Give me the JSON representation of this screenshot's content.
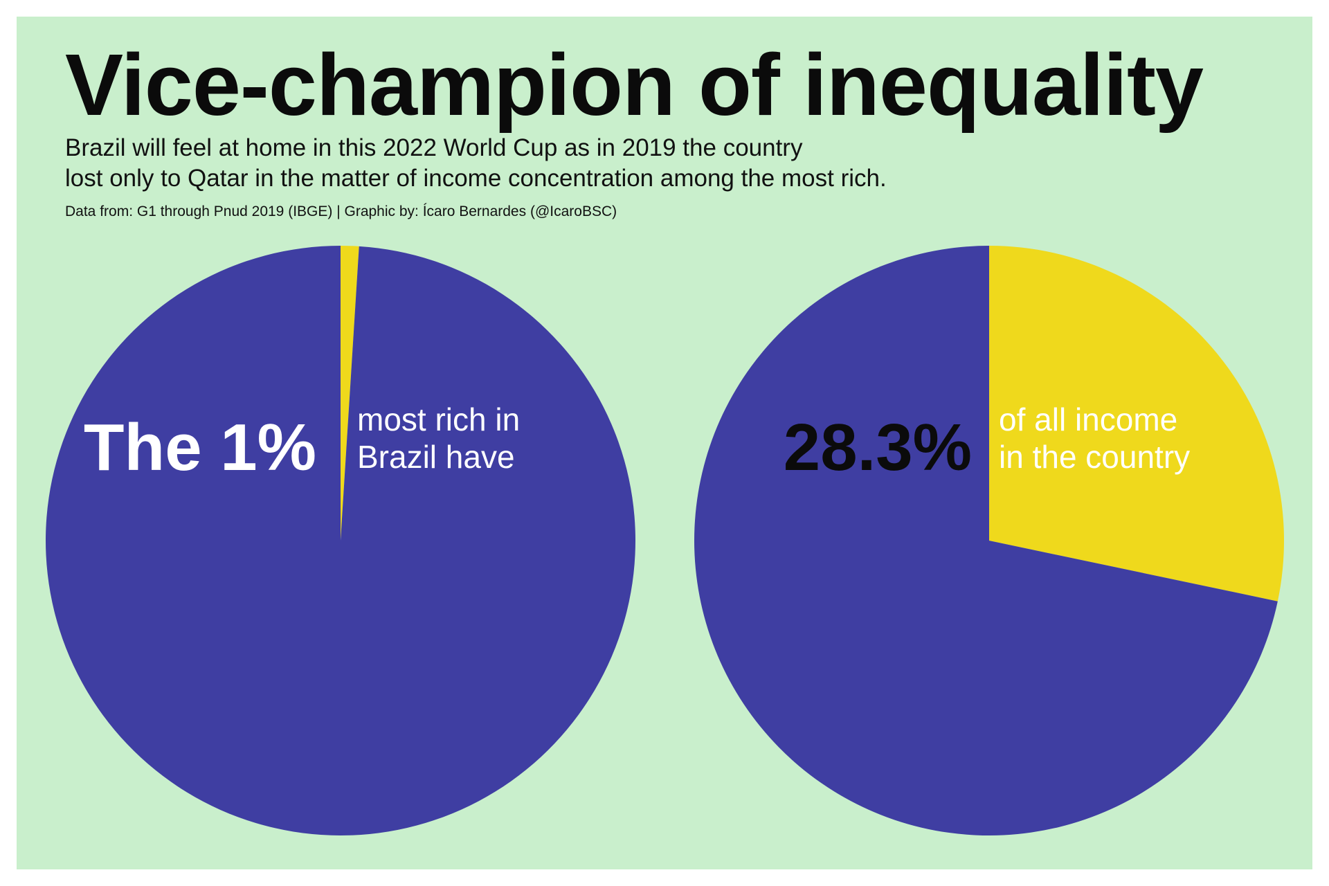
{
  "title": "Vice-champion of inequality",
  "subtitle": {
    "line1": "Brazil will feel at home in this 2022 World Cup as in 2019 the country",
    "line2": "lost only to Qatar in the matter of income concentration among the most rich."
  },
  "source": "Data from: G1 through Pnud 2019 (IBGE) | Graphic by: Ícaro Bernardes (@IcaroBSC)",
  "colors": {
    "background": "#c9efcc",
    "slice_main": "#3f3ea2",
    "slice_highlight": "#efd91c"
  },
  "chart_data": [
    {
      "type": "pie",
      "slices": [
        {
          "value": 1,
          "color": "#efd91c"
        },
        {
          "value": 99,
          "color": "#3f3ea2"
        }
      ],
      "big_label": "The 1%",
      "side_label": [
        "most rich in",
        "Brazil have"
      ]
    },
    {
      "type": "pie",
      "slices": [
        {
          "value": 28.3,
          "color": "#efd91c"
        },
        {
          "value": 71.7,
          "color": "#3f3ea2"
        }
      ],
      "big_label": "28.3%",
      "side_label": [
        "of all income",
        "in the country"
      ]
    }
  ]
}
